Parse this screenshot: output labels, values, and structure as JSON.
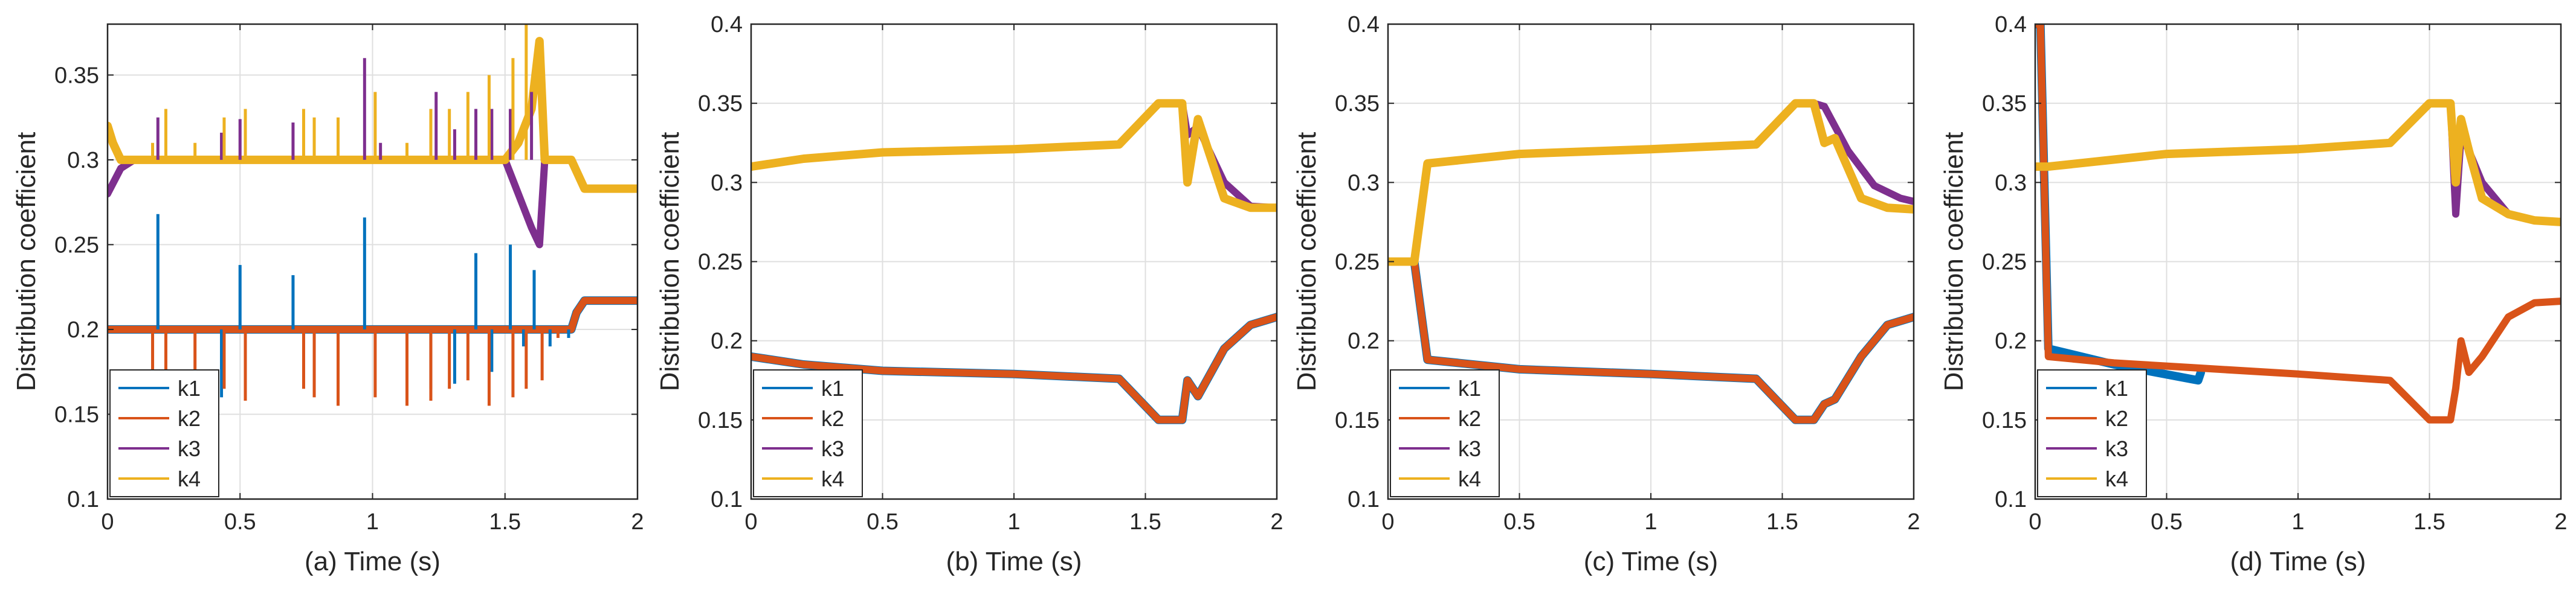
{
  "figure": {
    "background": "#ffffff"
  },
  "series_colors": {
    "k1": "#0072BD",
    "k2": "#D95319",
    "k3": "#7E2F8E",
    "k4": "#EDB120"
  },
  "chart_data": [
    {
      "type": "line",
      "panel": "a",
      "xlabel": "(a) Time (s)",
      "ylabel": "Distribution coefficient",
      "xlim": [
        0,
        2
      ],
      "ylim": [
        0.1,
        0.38
      ],
      "xticks": [
        0,
        0.5,
        1,
        1.5,
        2
      ],
      "xtick_labels": [
        "0",
        "0.5",
        "1",
        "1.5",
        "2"
      ],
      "yticks": [
        0.1,
        0.15,
        0.2,
        0.25,
        0.3,
        0.35
      ],
      "ytick_labels": [
        "0.1",
        "0.15",
        "0.2",
        "0.25",
        "0.3",
        "0.35"
      ],
      "grid": true,
      "legend": {
        "position": "bottom-left",
        "entries": [
          "k1",
          "k2",
          "k3",
          "k4"
        ]
      },
      "series": [
        {
          "name": "k1",
          "x": [
            0,
            1.75,
            1.77,
            1.8,
            2
          ],
          "y": [
            0.2,
            0.2,
            0.21,
            0.217,
            0.217
          ]
        },
        {
          "name": "k2",
          "x": [
            0,
            1.75,
            1.77,
            1.8,
            2
          ],
          "y": [
            0.2,
            0.2,
            0.21,
            0.217,
            0.217
          ]
        },
        {
          "name": "k3",
          "x": [
            0,
            0.05,
            0.1,
            1.5,
            1.55,
            1.6,
            1.63,
            1.65,
            1.75,
            1.8,
            2
          ],
          "y": [
            0.28,
            0.295,
            0.3,
            0.3,
            0.28,
            0.26,
            0.25,
            0.3,
            0.3,
            0.283,
            0.283
          ]
        },
        {
          "name": "k4",
          "x": [
            0,
            0.02,
            0.05,
            1.5,
            1.55,
            1.6,
            1.63,
            1.65,
            1.75,
            1.8,
            2
          ],
          "y": [
            0.32,
            0.31,
            0.3,
            0.3,
            0.31,
            0.33,
            0.37,
            0.3,
            0.3,
            0.283,
            0.283
          ]
        }
      ],
      "spikes": [
        {
          "series": "k1",
          "x": [
            0.19,
            0.43,
            0.5,
            0.7,
            0.97,
            1.22,
            1.31,
            1.39,
            1.45,
            1.52,
            1.57,
            1.61,
            1.67,
            1.74
          ],
          "y": [
            0.268,
            0.16,
            0.238,
            0.232,
            0.266,
            0.165,
            0.168,
            0.245,
            0.175,
            0.25,
            0.19,
            0.235,
            0.19,
            0.195
          ]
        },
        {
          "series": "k2",
          "x": [
            0.17,
            0.22,
            0.33,
            0.44,
            0.52,
            0.74,
            0.78,
            0.87,
            1.01,
            1.13,
            1.22,
            1.29,
            1.36,
            1.44,
            1.53,
            1.58,
            1.64,
            1.7
          ],
          "y": [
            0.17,
            0.155,
            0.16,
            0.165,
            0.158,
            0.165,
            0.16,
            0.155,
            0.16,
            0.155,
            0.158,
            0.165,
            0.17,
            0.155,
            0.16,
            0.165,
            0.17,
            0.195
          ]
        },
        {
          "series": "k3",
          "x": [
            0.19,
            0.43,
            0.5,
            0.7,
            0.97,
            1.03,
            1.24,
            1.31,
            1.39,
            1.45,
            1.52,
            1.6
          ],
          "y": [
            0.325,
            0.316,
            0.324,
            0.322,
            0.36,
            0.31,
            0.34,
            0.318,
            0.33,
            0.33,
            0.33,
            0.34
          ]
        },
        {
          "series": "k4",
          "x": [
            0.17,
            0.22,
            0.33,
            0.44,
            0.52,
            0.74,
            0.78,
            0.87,
            1.01,
            1.13,
            1.22,
            1.29,
            1.36,
            1.44,
            1.53,
            1.58
          ],
          "y": [
            0.31,
            0.33,
            0.31,
            0.325,
            0.33,
            0.33,
            0.325,
            0.325,
            0.34,
            0.31,
            0.33,
            0.33,
            0.34,
            0.35,
            0.36,
            0.38
          ]
        }
      ]
    },
    {
      "type": "line",
      "panel": "b",
      "xlabel": "(b) Time (s)",
      "ylabel": "Distribution coefficient",
      "xlim": [
        0,
        2
      ],
      "ylim": [
        0.1,
        0.4
      ],
      "xticks": [
        0,
        0.5,
        1,
        1.5,
        2
      ],
      "xtick_labels": [
        "0",
        "0.5",
        "1",
        "1.5",
        "2"
      ],
      "yticks": [
        0.1,
        0.15,
        0.2,
        0.25,
        0.3,
        0.35,
        0.4
      ],
      "ytick_labels": [
        "0.1",
        "0.15",
        "0.2",
        "0.25",
        "0.3",
        "0.35",
        "0.4"
      ],
      "grid": true,
      "legend": {
        "position": "bottom-left",
        "entries": [
          "k1",
          "k2",
          "k3",
          "k4"
        ]
      },
      "series": [
        {
          "name": "k1",
          "x": [
            0,
            0.2,
            0.5,
            1.0,
            1.4,
            1.55,
            1.64,
            1.66,
            1.7,
            1.8,
            1.9,
            2
          ],
          "y": [
            0.19,
            0.185,
            0.181,
            0.179,
            0.176,
            0.15,
            0.15,
            0.175,
            0.165,
            0.195,
            0.21,
            0.215
          ]
        },
        {
          "name": "k2",
          "x": [
            0,
            0.2,
            0.5,
            1.0,
            1.4,
            1.55,
            1.64,
            1.66,
            1.7,
            1.8,
            1.9,
            2
          ],
          "y": [
            0.19,
            0.185,
            0.181,
            0.179,
            0.176,
            0.15,
            0.15,
            0.175,
            0.165,
            0.195,
            0.21,
            0.215
          ]
        },
        {
          "name": "k3",
          "x": [
            0,
            0.2,
            0.5,
            1.0,
            1.4,
            1.55,
            1.64,
            1.66,
            1.7,
            1.8,
            1.9,
            2
          ],
          "y": [
            0.31,
            0.315,
            0.319,
            0.321,
            0.324,
            0.35,
            0.35,
            0.33,
            0.335,
            0.3,
            0.285,
            0.284
          ]
        },
        {
          "name": "k4",
          "x": [
            0,
            0.2,
            0.5,
            1.0,
            1.4,
            1.55,
            1.64,
            1.66,
            1.7,
            1.8,
            1.9,
            2
          ],
          "y": [
            0.31,
            0.315,
            0.319,
            0.321,
            0.324,
            0.35,
            0.35,
            0.3,
            0.34,
            0.29,
            0.284,
            0.284
          ]
        }
      ]
    },
    {
      "type": "line",
      "panel": "c",
      "xlabel": "(c) Time (s)",
      "ylabel": "Distribution coefficient",
      "xlim": [
        0,
        2
      ],
      "ylim": [
        0.1,
        0.4
      ],
      "xticks": [
        0,
        0.5,
        1,
        1.5,
        2
      ],
      "xtick_labels": [
        "0",
        "0.5",
        "1",
        "1.5",
        "2"
      ],
      "yticks": [
        0.1,
        0.15,
        0.2,
        0.25,
        0.3,
        0.35,
        0.4
      ],
      "ytick_labels": [
        "0.1",
        "0.15",
        "0.2",
        "0.25",
        "0.3",
        "0.35",
        "0.4"
      ],
      "grid": true,
      "legend": {
        "position": "bottom-left",
        "entries": [
          "k1",
          "k2",
          "k3",
          "k4"
        ]
      },
      "series": [
        {
          "name": "k1",
          "x": [
            0,
            0.1,
            0.15,
            0.5,
            1.0,
            1.4,
            1.55,
            1.62,
            1.66,
            1.7,
            1.8,
            1.9,
            2
          ],
          "y": [
            0.25,
            0.25,
            0.188,
            0.182,
            0.179,
            0.176,
            0.15,
            0.15,
            0.16,
            0.163,
            0.19,
            0.21,
            0.215
          ]
        },
        {
          "name": "k2",
          "x": [
            0,
            0.1,
            0.15,
            0.5,
            1.0,
            1.4,
            1.55,
            1.62,
            1.66,
            1.7,
            1.8,
            1.9,
            2
          ],
          "y": [
            0.25,
            0.25,
            0.188,
            0.182,
            0.179,
            0.176,
            0.15,
            0.15,
            0.16,
            0.163,
            0.19,
            0.21,
            0.215
          ]
        },
        {
          "name": "k3",
          "x": [
            0,
            0.1,
            0.15,
            0.5,
            1.0,
            1.4,
            1.55,
            1.62,
            1.66,
            1.75,
            1.85,
            1.95,
            2
          ],
          "y": [
            0.25,
            0.25,
            0.312,
            0.318,
            0.321,
            0.324,
            0.35,
            0.35,
            0.348,
            0.32,
            0.298,
            0.29,
            0.288
          ]
        },
        {
          "name": "k4",
          "x": [
            0,
            0.1,
            0.15,
            0.5,
            1.0,
            1.4,
            1.55,
            1.62,
            1.66,
            1.7,
            1.8,
            1.9,
            2
          ],
          "y": [
            0.25,
            0.25,
            0.312,
            0.318,
            0.321,
            0.324,
            0.35,
            0.35,
            0.325,
            0.328,
            0.29,
            0.284,
            0.283
          ]
        }
      ]
    },
    {
      "type": "line",
      "panel": "d",
      "xlabel": "(d) Time (s)",
      "ylabel": "Distribution coefficient",
      "xlim": [
        0,
        2
      ],
      "ylim": [
        0.1,
        0.4
      ],
      "xticks": [
        0,
        0.5,
        1,
        1.5,
        2
      ],
      "xtick_labels": [
        "0",
        "0.5",
        "1",
        "1.5",
        "2"
      ],
      "yticks": [
        0.1,
        0.15,
        0.2,
        0.25,
        0.3,
        0.35,
        0.4
      ],
      "ytick_labels": [
        "0.1",
        "0.15",
        "0.2",
        "0.25",
        "0.3",
        "0.35",
        "0.4"
      ],
      "grid": true,
      "legend": {
        "position": "bottom-left",
        "entries": [
          "k1",
          "k2",
          "k3",
          "k4"
        ]
      },
      "series": [
        {
          "name": "k1",
          "x": [
            0,
            0.02,
            0.05,
            0.3,
            0.62,
            0.63
          ],
          "y": [
            0.4,
            0.4,
            0.195,
            0.185,
            0.175,
            0.18
          ]
        },
        {
          "name": "k2",
          "x": [
            0,
            0.02,
            0.05,
            0.3,
            0.6,
            1.0,
            1.35,
            1.5,
            1.58,
            1.6,
            1.62,
            1.65,
            1.7,
            1.8,
            1.9,
            2
          ],
          "y": [
            0.4,
            0.4,
            0.19,
            0.186,
            0.183,
            0.179,
            0.175,
            0.15,
            0.15,
            0.17,
            0.2,
            0.18,
            0.19,
            0.215,
            0.224,
            0.225
          ]
        },
        {
          "name": "k3",
          "x": [
            0,
            0.05,
            0.5,
            1.0,
            1.35,
            1.5,
            1.58,
            1.6,
            1.62,
            1.65,
            1.7,
            1.8,
            1.9,
            2
          ],
          "y": [
            0.31,
            0.31,
            0.318,
            0.321,
            0.325,
            0.35,
            0.35,
            0.28,
            0.33,
            0.32,
            0.3,
            0.28,
            0.276,
            0.275
          ]
        },
        {
          "name": "k4",
          "x": [
            0,
            0.05,
            0.5,
            1.0,
            1.35,
            1.5,
            1.58,
            1.6,
            1.62,
            1.65,
            1.7,
            1.8,
            1.9,
            2
          ],
          "y": [
            0.31,
            0.31,
            0.318,
            0.321,
            0.325,
            0.35,
            0.35,
            0.3,
            0.34,
            0.32,
            0.29,
            0.28,
            0.276,
            0.275
          ]
        }
      ]
    }
  ]
}
